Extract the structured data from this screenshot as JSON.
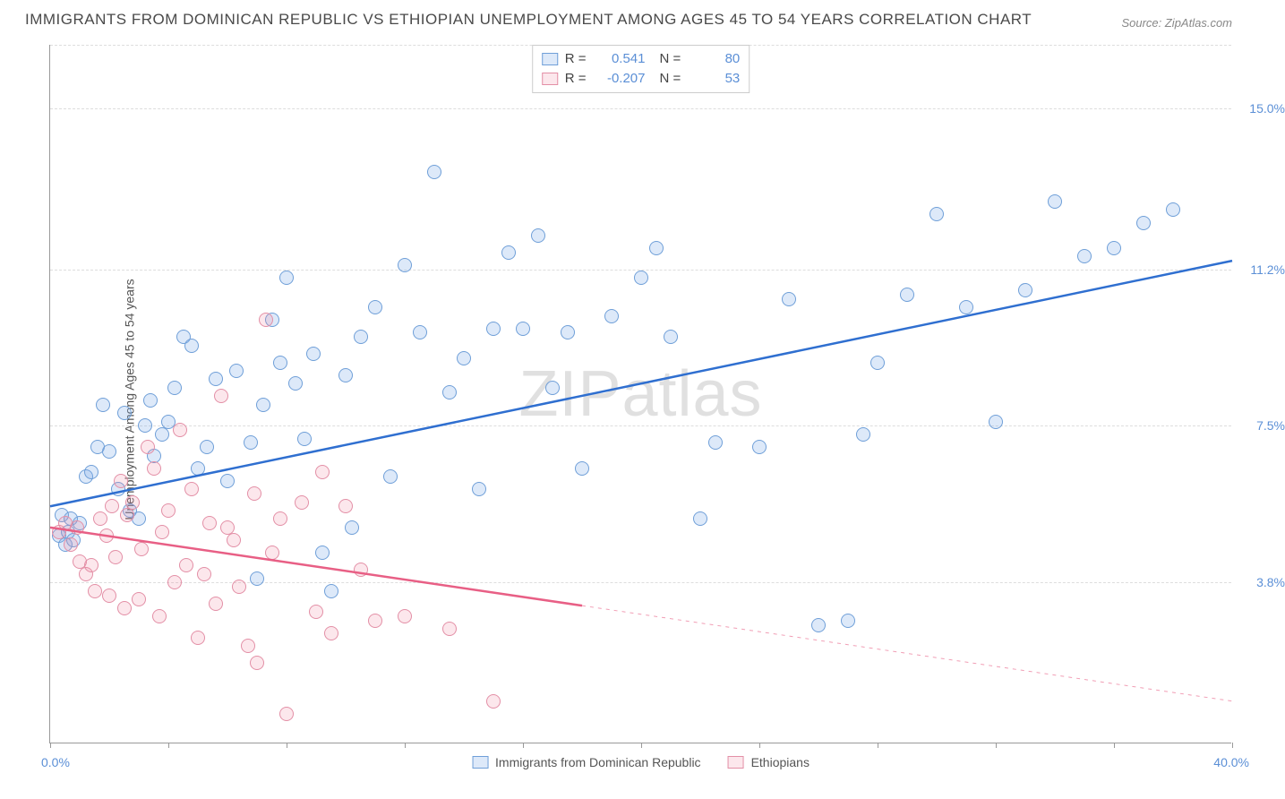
{
  "title": "IMMIGRANTS FROM DOMINICAN REPUBLIC VS ETHIOPIAN UNEMPLOYMENT AMONG AGES 45 TO 54 YEARS CORRELATION CHART",
  "source": "Source: ZipAtlas.com",
  "watermark": "ZIPatlas",
  "y_axis_label": "Unemployment Among Ages 45 to 54 years",
  "chart": {
    "type": "scatter",
    "xlim": [
      0,
      40
    ],
    "ylim": [
      0,
      16.5
    ],
    "x_min_label": "0.0%",
    "x_max_label": "40.0%",
    "y_ticks": [
      {
        "v": 3.8,
        "label": "3.8%"
      },
      {
        "v": 7.5,
        "label": "7.5%"
      },
      {
        "v": 11.2,
        "label": "11.2%"
      },
      {
        "v": 15.0,
        "label": "15.0%"
      }
    ],
    "x_tick_positions": [
      0,
      4,
      8,
      12,
      16,
      20,
      24,
      28,
      32,
      36,
      40
    ],
    "background_color": "#ffffff",
    "grid_color": "#dddddd",
    "marker_radius": 8,
    "marker_border_width": 1.5,
    "series": [
      {
        "name": "Immigrants from Dominican Republic",
        "fill_color": "rgba(118,169,231,0.25)",
        "stroke_color": "#6f9fd8",
        "line_color": "#2f6fd0",
        "line_width": 2.5,
        "R": "0.541",
        "N": "80",
        "trend": {
          "x1": 0,
          "y1": 5.6,
          "x2": 40,
          "y2": 11.4,
          "solid_until": 40
        },
        "points": [
          [
            0.3,
            4.9
          ],
          [
            0.4,
            5.4
          ],
          [
            0.5,
            4.7
          ],
          [
            0.6,
            5.0
          ],
          [
            0.7,
            5.3
          ],
          [
            0.8,
            4.8
          ],
          [
            1.0,
            5.2
          ],
          [
            1.2,
            6.3
          ],
          [
            1.4,
            6.4
          ],
          [
            1.6,
            7.0
          ],
          [
            1.8,
            8.0
          ],
          [
            2.0,
            6.9
          ],
          [
            2.3,
            6.0
          ],
          [
            2.5,
            7.8
          ],
          [
            2.7,
            5.5
          ],
          [
            3.0,
            5.3
          ],
          [
            3.2,
            7.5
          ],
          [
            3.4,
            8.1
          ],
          [
            3.5,
            6.8
          ],
          [
            3.8,
            7.3
          ],
          [
            4.0,
            7.6
          ],
          [
            4.2,
            8.4
          ],
          [
            4.5,
            9.6
          ],
          [
            4.8,
            9.4
          ],
          [
            5.0,
            6.5
          ],
          [
            5.3,
            7.0
          ],
          [
            5.6,
            8.6
          ],
          [
            6.0,
            6.2
          ],
          [
            6.3,
            8.8
          ],
          [
            6.8,
            7.1
          ],
          [
            7.0,
            3.9
          ],
          [
            7.2,
            8.0
          ],
          [
            7.5,
            10.0
          ],
          [
            7.8,
            9.0
          ],
          [
            8.0,
            11.0
          ],
          [
            8.3,
            8.5
          ],
          [
            8.6,
            7.2
          ],
          [
            8.9,
            9.2
          ],
          [
            9.2,
            4.5
          ],
          [
            9.5,
            3.6
          ],
          [
            10.0,
            8.7
          ],
          [
            10.2,
            5.1
          ],
          [
            10.5,
            9.6
          ],
          [
            11.0,
            10.3
          ],
          [
            11.5,
            6.3
          ],
          [
            12.0,
            11.3
          ],
          [
            12.5,
            9.7
          ],
          [
            13.0,
            13.5
          ],
          [
            13.5,
            8.3
          ],
          [
            14.0,
            9.1
          ],
          [
            14.5,
            6.0
          ],
          [
            15.0,
            9.8
          ],
          [
            15.5,
            11.6
          ],
          [
            16.0,
            9.8
          ],
          [
            16.5,
            12.0
          ],
          [
            17.0,
            8.4
          ],
          [
            17.5,
            9.7
          ],
          [
            18.0,
            6.5
          ],
          [
            19.0,
            10.1
          ],
          [
            20.0,
            11.0
          ],
          [
            20.5,
            11.7
          ],
          [
            21.0,
            9.6
          ],
          [
            22.0,
            5.3
          ],
          [
            22.5,
            7.1
          ],
          [
            24.0,
            7.0
          ],
          [
            25.0,
            10.5
          ],
          [
            26.0,
            2.8
          ],
          [
            27.0,
            2.9
          ],
          [
            27.5,
            7.3
          ],
          [
            28.0,
            9.0
          ],
          [
            29.0,
            10.6
          ],
          [
            30.0,
            12.5
          ],
          [
            31.0,
            10.3
          ],
          [
            32.0,
            7.6
          ],
          [
            33.0,
            10.7
          ],
          [
            34.0,
            12.8
          ],
          [
            35.0,
            11.5
          ],
          [
            36.0,
            11.7
          ],
          [
            37.0,
            12.3
          ],
          [
            38.0,
            12.6
          ]
        ]
      },
      {
        "name": "Ethiopians",
        "fill_color": "rgba(238,134,161,0.20)",
        "stroke_color": "#e38fa6",
        "line_color": "#e85f85",
        "line_width": 2.5,
        "R": "-0.207",
        "N": "53",
        "trend": {
          "x1": 0,
          "y1": 5.1,
          "x2": 40,
          "y2": 1.0,
          "solid_until": 18
        },
        "points": [
          [
            0.3,
            5.0
          ],
          [
            0.5,
            5.2
          ],
          [
            0.7,
            4.7
          ],
          [
            0.9,
            5.1
          ],
          [
            1.0,
            4.3
          ],
          [
            1.2,
            4.0
          ],
          [
            1.4,
            4.2
          ],
          [
            1.5,
            3.6
          ],
          [
            1.7,
            5.3
          ],
          [
            1.9,
            4.9
          ],
          [
            2.0,
            3.5
          ],
          [
            2.1,
            5.6
          ],
          [
            2.2,
            4.4
          ],
          [
            2.4,
            6.2
          ],
          [
            2.5,
            3.2
          ],
          [
            2.6,
            5.4
          ],
          [
            2.8,
            5.7
          ],
          [
            3.0,
            3.4
          ],
          [
            3.1,
            4.6
          ],
          [
            3.3,
            7.0
          ],
          [
            3.5,
            6.5
          ],
          [
            3.7,
            3.0
          ],
          [
            3.8,
            5.0
          ],
          [
            4.0,
            5.5
          ],
          [
            4.2,
            3.8
          ],
          [
            4.4,
            7.4
          ],
          [
            4.6,
            4.2
          ],
          [
            4.8,
            6.0
          ],
          [
            5.0,
            2.5
          ],
          [
            5.2,
            4.0
          ],
          [
            5.4,
            5.2
          ],
          [
            5.6,
            3.3
          ],
          [
            5.8,
            8.2
          ],
          [
            6.0,
            5.1
          ],
          [
            6.2,
            4.8
          ],
          [
            6.4,
            3.7
          ],
          [
            6.7,
            2.3
          ],
          [
            6.9,
            5.9
          ],
          [
            7.0,
            1.9
          ],
          [
            7.3,
            10.0
          ],
          [
            7.5,
            4.5
          ],
          [
            7.8,
            5.3
          ],
          [
            8.0,
            0.7
          ],
          [
            8.5,
            5.7
          ],
          [
            9.0,
            3.1
          ],
          [
            9.2,
            6.4
          ],
          [
            9.5,
            2.6
          ],
          [
            10.0,
            5.6
          ],
          [
            10.5,
            4.1
          ],
          [
            11.0,
            2.9
          ],
          [
            12.0,
            3.0
          ],
          [
            13.5,
            2.7
          ],
          [
            15.0,
            1.0
          ]
        ]
      }
    ]
  },
  "colors": {
    "title_text": "#4a4a4a",
    "axis_text": "#555555",
    "axis_value": "#5b8fd6",
    "source_text": "#888888"
  },
  "legend_labels": {
    "r_prefix": "R =",
    "n_prefix": "N ="
  }
}
